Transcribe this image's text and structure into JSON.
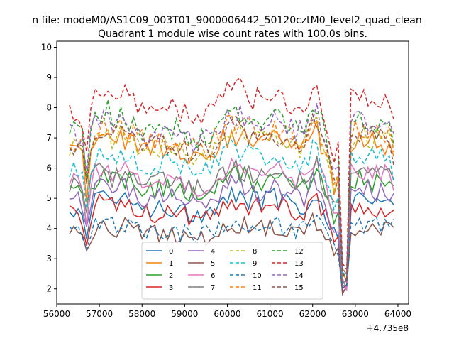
{
  "figure": {
    "suptitle": "n file: modeM0/AS1C09_003T01_9000006442_50120cztM0_level2_quad_clean",
    "title": "Quadrant 1 module wise count rates with 100.0s bins."
  },
  "chart_data": {
    "type": "line",
    "title": "Quadrant 1 module wise count rates with 100.0s bins.",
    "xlabel": "",
    "ylabel": "",
    "x_offset_label": "+4.735e8",
    "xlim": [
      56000,
      64250
    ],
    "ylim": [
      1.5,
      10.2
    ],
    "xticks": [
      56000,
      57000,
      58000,
      59000,
      60000,
      61000,
      62000,
      63000,
      64000
    ],
    "yticks": [
      2,
      3,
      4,
      5,
      6,
      7,
      8,
      9,
      10
    ],
    "x_start": 56300,
    "x_step": 100,
    "legend_position": "lower-center",
    "legend_columns": 4,
    "grid": false,
    "series": [
      {
        "name": "0",
        "color": "#1f77b4",
        "dash": "solid",
        "base": 4.8,
        "amp": 0.35,
        "seed": 1
      },
      {
        "name": "1",
        "color": "#ff7f0e",
        "dash": "solid",
        "base": 6.7,
        "amp": 0.4,
        "seed": 2
      },
      {
        "name": "2",
        "color": "#2ca02c",
        "dash": "solid",
        "base": 5.4,
        "amp": 0.35,
        "seed": 3
      },
      {
        "name": "3",
        "color": "#d62728",
        "dash": "solid",
        "base": 4.6,
        "amp": 0.35,
        "seed": 4
      },
      {
        "name": "4",
        "color": "#9467bd",
        "dash": "solid",
        "base": 5.1,
        "amp": 0.35,
        "seed": 5
      },
      {
        "name": "5",
        "color": "#8c564b",
        "dash": "solid",
        "base": 3.9,
        "amp": 0.3,
        "seed": 6
      },
      {
        "name": "6",
        "color": "#e377c2",
        "dash": "solid",
        "base": 5.7,
        "amp": 0.35,
        "seed": 7
      },
      {
        "name": "7",
        "color": "#7f7f7f",
        "dash": "solid",
        "base": 5.6,
        "amp": 0.4,
        "seed": 8
      },
      {
        "name": "8",
        "color": "#bcbd22",
        "dash": "dashed",
        "base": 6.8,
        "amp": 0.4,
        "seed": 9
      },
      {
        "name": "9",
        "color": "#17becf",
        "dash": "dashed",
        "base": 6.2,
        "amp": 0.35,
        "seed": 10
      },
      {
        "name": "10",
        "color": "#1f77b4",
        "dash": "dashed",
        "base": 4.0,
        "amp": 0.3,
        "seed": 11
      },
      {
        "name": "11",
        "color": "#ff7f0e",
        "dash": "dashed",
        "base": 7.0,
        "amp": 0.4,
        "seed": 12
      },
      {
        "name": "12",
        "color": "#2ca02c",
        "dash": "dashed",
        "base": 7.4,
        "amp": 0.4,
        "seed": 13
      },
      {
        "name": "13",
        "color": "#d62728",
        "dash": "dashed",
        "base": 8.1,
        "amp": 0.4,
        "seed": 14
      },
      {
        "name": "14",
        "color": "#9467bd",
        "dash": "dashed",
        "base": 7.3,
        "amp": 0.4,
        "seed": 15
      },
      {
        "name": "15",
        "color": "#8c564b",
        "dash": "dashed",
        "base": 6.9,
        "amp": 0.4,
        "seed": 16
      }
    ]
  }
}
